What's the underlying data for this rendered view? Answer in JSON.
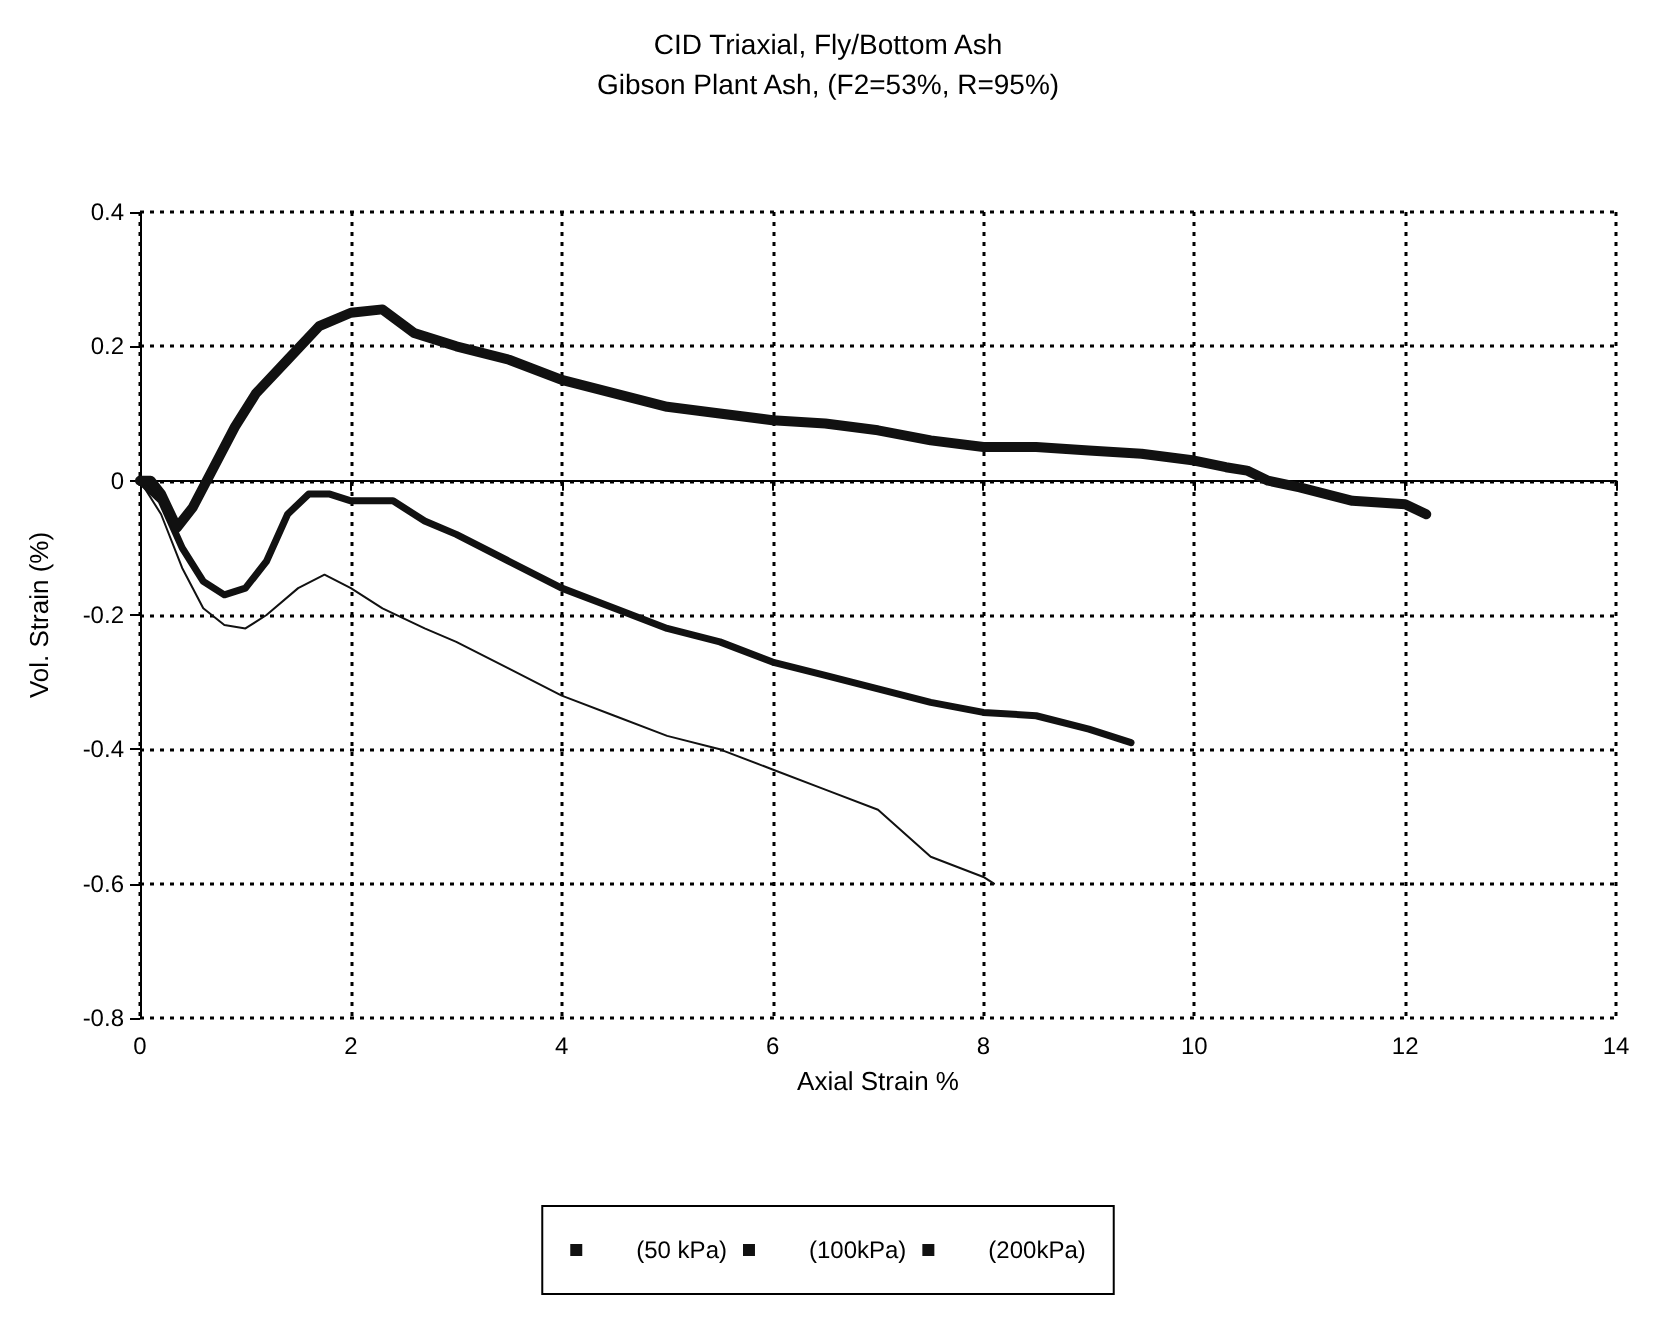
{
  "chart_data": {
    "type": "line",
    "title": "CID Triaxial, Fly/Bottom Ash",
    "subtitle": "Gibson Plant Ash, (F2=53%, R=95%)",
    "xlabel": "Axial Strain %",
    "ylabel": "Vol. Strain (%)",
    "xlim": [
      0,
      14
    ],
    "xticks": [
      0,
      2,
      4,
      6,
      8,
      10,
      12,
      14
    ],
    "ylim": [
      -0.8,
      0.4
    ],
    "yticks": [
      -0.8,
      -0.6,
      -0.4,
      -0.2,
      0,
      0.2,
      0.4
    ],
    "grid": true,
    "legend": "bottom",
    "marker": "none",
    "line_style": "solid",
    "series": [
      {
        "name": "(50 kPa)",
        "color": "#111111",
        "x": [
          0,
          0.1,
          0.2,
          0.35,
          0.5,
          0.7,
          0.9,
          1.1,
          1.4,
          1.7,
          2.0,
          2.3,
          2.6,
          3,
          3.5,
          4,
          4.5,
          5,
          5.5,
          6,
          6.5,
          7,
          7.5,
          8,
          8.5,
          9,
          9.5,
          10,
          10.3,
          10.5,
          10.7,
          11,
          11.5,
          12,
          12.2
        ],
        "values": [
          0,
          0,
          -0.02,
          -0.07,
          -0.04,
          0.02,
          0.08,
          0.13,
          0.18,
          0.23,
          0.25,
          0.255,
          0.22,
          0.2,
          0.18,
          0.15,
          0.13,
          0.11,
          0.1,
          0.09,
          0.085,
          0.075,
          0.06,
          0.05,
          0.05,
          0.045,
          0.04,
          0.03,
          0.02,
          0.015,
          0,
          -0.01,
          -0.03,
          -0.035,
          -0.05
        ]
      },
      {
        "name": "(100kPa)",
        "color": "#111111",
        "x": [
          0,
          0.2,
          0.4,
          0.6,
          0.8,
          1.0,
          1.2,
          1.4,
          1.6,
          1.8,
          2,
          2.4,
          2.7,
          3,
          3.5,
          4,
          4.5,
          5,
          5.5,
          6,
          6.5,
          7,
          7.5,
          8,
          8.5,
          9,
          9.4
        ],
        "values": [
          0,
          -0.03,
          -0.1,
          -0.15,
          -0.17,
          -0.16,
          -0.12,
          -0.05,
          -0.02,
          -0.02,
          -0.03,
          -0.03,
          -0.06,
          -0.08,
          -0.12,
          -0.16,
          -0.19,
          -0.22,
          -0.24,
          -0.27,
          -0.29,
          -0.31,
          -0.33,
          -0.345,
          -0.35,
          -0.37,
          -0.39
        ]
      },
      {
        "name": "(200kPa)",
        "color": "#111111",
        "x": [
          0,
          0.2,
          0.4,
          0.6,
          0.8,
          1.0,
          1.2,
          1.5,
          1.75,
          2,
          2.3,
          2.7,
          3,
          3.5,
          4,
          4.5,
          5,
          5.5,
          6,
          6.5,
          7,
          7.5,
          8,
          8.1
        ],
        "values": [
          0,
          -0.05,
          -0.13,
          -0.19,
          -0.215,
          -0.22,
          -0.2,
          -0.16,
          -0.14,
          -0.16,
          -0.19,
          -0.22,
          -0.24,
          -0.28,
          -0.32,
          -0.35,
          -0.38,
          -0.4,
          -0.43,
          -0.46,
          -0.49,
          -0.56,
          -0.59,
          -0.6
        ]
      }
    ]
  }
}
